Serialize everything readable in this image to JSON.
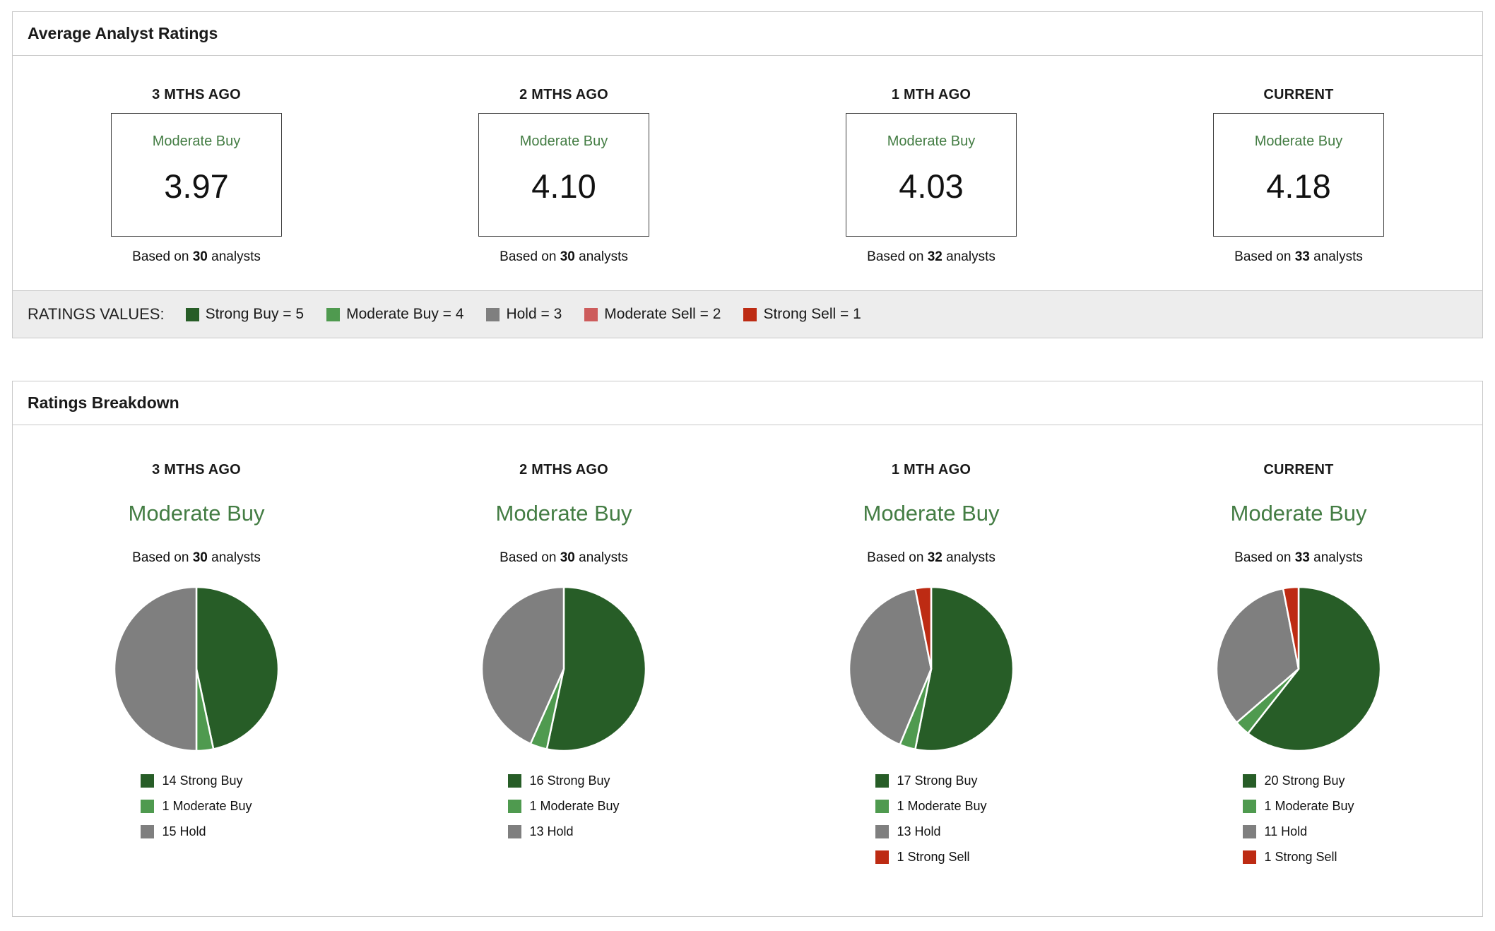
{
  "colors": {
    "strong_buy": "#275d27",
    "moderate_buy": "#4f9a4f",
    "hold": "#7f7f7f",
    "moderate_sell": "#cd5c5c",
    "strong_sell": "#bd2b13",
    "rating_text_green": "#447d44"
  },
  "average_panel": {
    "title": "Average Analyst Ratings",
    "based_on_label": "Based on",
    "analysts_label": "analysts",
    "columns": [
      {
        "period": "3 MTHS AGO",
        "rating_label": "Moderate Buy",
        "rating_value": "3.97",
        "analysts": "30"
      },
      {
        "period": "2 MTHS AGO",
        "rating_label": "Moderate Buy",
        "rating_value": "4.10",
        "analysts": "30"
      },
      {
        "period": "1 MTH AGO",
        "rating_label": "Moderate Buy",
        "rating_value": "4.03",
        "analysts": "32"
      },
      {
        "period": "CURRENT",
        "rating_label": "Moderate Buy",
        "rating_value": "4.18",
        "analysts": "33"
      }
    ],
    "legend": {
      "label": "RATINGS VALUES:",
      "items": [
        {
          "label": "Strong Buy = 5",
          "color_key": "strong_buy"
        },
        {
          "label": "Moderate Buy = 4",
          "color_key": "moderate_buy"
        },
        {
          "label": "Hold = 3",
          "color_key": "hold"
        },
        {
          "label": "Moderate Sell = 2",
          "color_key": "moderate_sell"
        },
        {
          "label": "Strong Sell = 1",
          "color_key": "strong_sell"
        }
      ]
    }
  },
  "breakdown_panel": {
    "title": "Ratings Breakdown",
    "based_on_label": "Based on",
    "analysts_label": "analysts",
    "columns": [
      {
        "period": "3 MTHS AGO",
        "rating_label": "Moderate Buy",
        "analysts": "30",
        "slices": [
          {
            "label": "Strong Buy",
            "value": 14,
            "color_key": "strong_buy"
          },
          {
            "label": "Moderate Buy",
            "value": 1,
            "color_key": "moderate_buy"
          },
          {
            "label": "Hold",
            "value": 15,
            "color_key": "hold"
          }
        ]
      },
      {
        "period": "2 MTHS AGO",
        "rating_label": "Moderate Buy",
        "analysts": "30",
        "slices": [
          {
            "label": "Strong Buy",
            "value": 16,
            "color_key": "strong_buy"
          },
          {
            "label": "Moderate Buy",
            "value": 1,
            "color_key": "moderate_buy"
          },
          {
            "label": "Hold",
            "value": 13,
            "color_key": "hold"
          }
        ]
      },
      {
        "period": "1 MTH AGO",
        "rating_label": "Moderate Buy",
        "analysts": "32",
        "slices": [
          {
            "label": "Strong Buy",
            "value": 17,
            "color_key": "strong_buy"
          },
          {
            "label": "Moderate Buy",
            "value": 1,
            "color_key": "moderate_buy"
          },
          {
            "label": "Hold",
            "value": 13,
            "color_key": "hold"
          },
          {
            "label": "Strong Sell",
            "value": 1,
            "color_key": "strong_sell"
          }
        ]
      },
      {
        "period": "CURRENT",
        "rating_label": "Moderate Buy",
        "analysts": "33",
        "slices": [
          {
            "label": "Strong Buy",
            "value": 20,
            "color_key": "strong_buy"
          },
          {
            "label": "Moderate Buy",
            "value": 1,
            "color_key": "moderate_buy"
          },
          {
            "label": "Hold",
            "value": 11,
            "color_key": "hold"
          },
          {
            "label": "Strong Sell",
            "value": 1,
            "color_key": "strong_sell"
          }
        ]
      }
    ]
  },
  "chart_data": [
    {
      "type": "table",
      "title": "Average Analyst Ratings",
      "categories": [
        "3 MTHS AGO",
        "2 MTHS AGO",
        "1 MTH AGO",
        "CURRENT"
      ],
      "ratings": [
        "Moderate Buy",
        "Moderate Buy",
        "Moderate Buy",
        "Moderate Buy"
      ],
      "values": [
        3.97,
        4.1,
        4.03,
        4.18
      ],
      "analysts": [
        30,
        30,
        32,
        33
      ],
      "scale": "Strong Buy = 5, Moderate Buy = 4, Hold = 3, Moderate Sell = 2, Strong Sell = 1"
    },
    {
      "type": "pie",
      "title": "3 MTHS AGO",
      "subtitle": "Moderate Buy",
      "analysts": 30,
      "labels": [
        "Strong Buy",
        "Moderate Buy",
        "Hold"
      ],
      "values": [
        14,
        1,
        15
      ],
      "colors": [
        "#275d27",
        "#4f9a4f",
        "#7f7f7f"
      ],
      "legend_position": "bottom"
    },
    {
      "type": "pie",
      "title": "2 MTHS AGO",
      "subtitle": "Moderate Buy",
      "analysts": 30,
      "labels": [
        "Strong Buy",
        "Moderate Buy",
        "Hold"
      ],
      "values": [
        16,
        1,
        13
      ],
      "colors": [
        "#275d27",
        "#4f9a4f",
        "#7f7f7f"
      ],
      "legend_position": "bottom"
    },
    {
      "type": "pie",
      "title": "1 MTH AGO",
      "subtitle": "Moderate Buy",
      "analysts": 32,
      "labels": [
        "Strong Buy",
        "Moderate Buy",
        "Hold",
        "Strong Sell"
      ],
      "values": [
        17,
        1,
        13,
        1
      ],
      "colors": [
        "#275d27",
        "#4f9a4f",
        "#7f7f7f",
        "#bd2b13"
      ],
      "legend_position": "bottom"
    },
    {
      "type": "pie",
      "title": "CURRENT",
      "subtitle": "Moderate Buy",
      "analysts": 33,
      "labels": [
        "Strong Buy",
        "Moderate Buy",
        "Hold",
        "Strong Sell"
      ],
      "values": [
        20,
        1,
        11,
        1
      ],
      "colors": [
        "#275d27",
        "#4f9a4f",
        "#7f7f7f",
        "#bd2b13"
      ],
      "legend_position": "bottom"
    }
  ]
}
